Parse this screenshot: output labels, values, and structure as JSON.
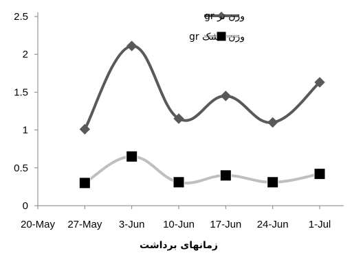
{
  "chart_data": {
    "type": "line",
    "categories": [
      "20-May",
      "27-May",
      "3-Jun",
      "10-Jun",
      "17-Jun",
      "24-Jun",
      "1-Jul"
    ],
    "y_ticks": [
      "0",
      "0.5",
      "1",
      "1.5",
      "2",
      "2.5"
    ],
    "ylim": [
      0,
      2.5
    ],
    "xlabel": "زمانهای برداشت",
    "ylabel": "",
    "title": "",
    "grid": false,
    "legend_position": "top-right",
    "series": [
      {
        "name": "وزن تر gr",
        "marker": "diamond",
        "color": "#595959",
        "values": [
          null,
          1.01,
          2.11,
          1.15,
          1.45,
          1.1,
          1.63
        ]
      },
      {
        "name": "وزن خشک gr",
        "marker": "square",
        "color": "#bfbfbf",
        "values": [
          null,
          0.3,
          0.65,
          0.31,
          0.4,
          0.31,
          0.42
        ]
      }
    ]
  }
}
